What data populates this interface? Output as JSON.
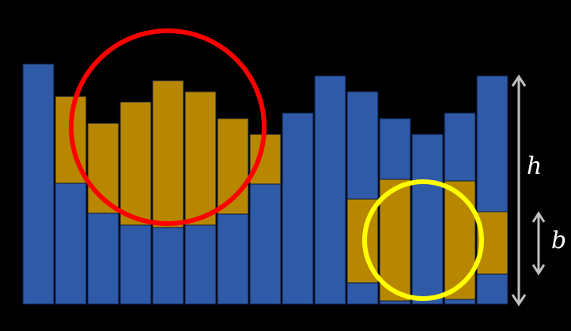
{
  "colors": {
    "background": "#000000",
    "bar_fill": "#2f5aa8",
    "bar_edge": "#0a1a3a",
    "highlight_fill": "#b88700",
    "circle_left": "#ff0000",
    "circle_right": "#ffff00",
    "arrow": "#c0c0c0",
    "label_text": "#ffffff"
  },
  "bars": [
    {
      "total": 304,
      "highlight": [
        0,
        0
      ]
    },
    {
      "total": 263,
      "highlight": [
        153,
        263
      ]
    },
    {
      "total": 229,
      "highlight": [
        115,
        229
      ]
    },
    {
      "total": 256,
      "highlight": [
        100,
        256
      ]
    },
    {
      "total": 283,
      "highlight": [
        97,
        283
      ]
    },
    {
      "total": 269,
      "highlight": [
        100,
        269
      ]
    },
    {
      "total": 235,
      "highlight": [
        114,
        235
      ]
    },
    {
      "total": 215,
      "highlight": [
        152,
        215
      ]
    },
    {
      "total": 242,
      "highlight": [
        0,
        0
      ]
    },
    {
      "total": 289,
      "highlight": [
        0,
        0
      ]
    },
    {
      "total": 269,
      "highlight": [
        27,
        133
      ]
    },
    {
      "total": 235,
      "highlight": [
        4,
        158
      ]
    },
    {
      "total": 215,
      "highlight": [
        0,
        0
      ]
    },
    {
      "total": 242,
      "highlight": [
        6,
        156
      ]
    },
    {
      "total": 289,
      "highlight": [
        38,
        117
      ]
    }
  ],
  "annotations": {
    "h_label": "h",
    "b_label": "b"
  }
}
